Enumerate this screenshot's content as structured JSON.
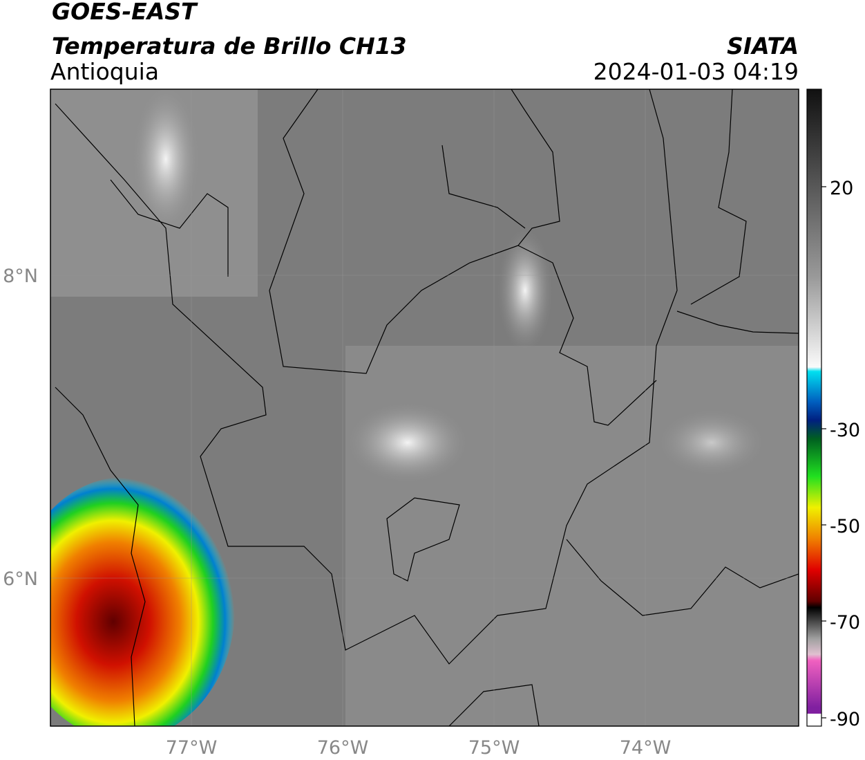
{
  "header": {
    "title": "GOES-EAST",
    "subtitle": "Temperatura de Brillo CH13",
    "region": "Antioquia",
    "source": "SIATA",
    "timestamp": "2024-01-03 04:19"
  },
  "map": {
    "lat_labels": [
      "8°N",
      "6°N"
    ],
    "lon_labels": [
      "77°W",
      "76°W",
      "75°W",
      "74°W"
    ]
  },
  "colorbar": {
    "ticks": [
      "20",
      "-30",
      "-50",
      "-70",
      "-90"
    ]
  }
}
